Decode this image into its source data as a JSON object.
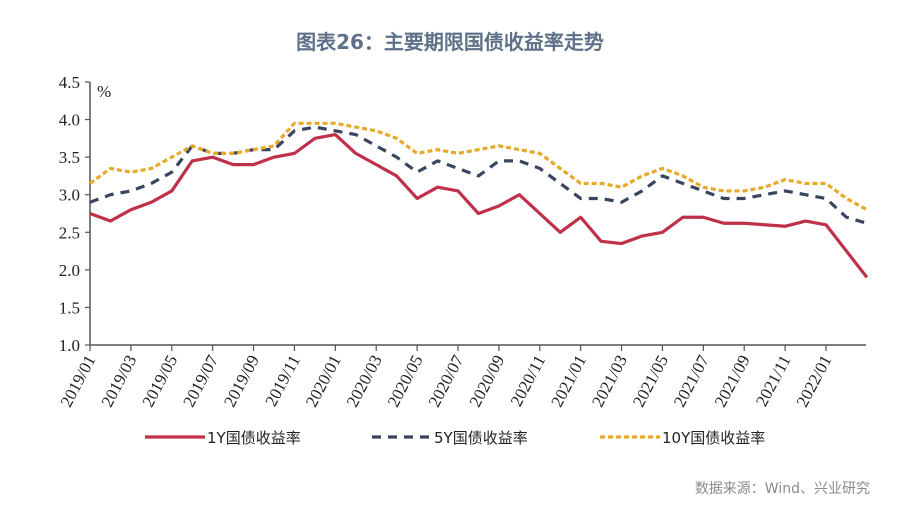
{
  "chart_data": {
    "type": "line",
    "title": "图表26：主要期限国债收益率走势",
    "ylabel": "%",
    "ylim": [
      1.0,
      4.5
    ],
    "yticks": [
      "1.0",
      "1.5",
      "2.0",
      "2.5",
      "3.0",
      "3.5",
      "4.0",
      "4.5"
    ],
    "xticks": [
      "2019/01",
      "2019/03",
      "2019/05",
      "2019/07",
      "2019/09",
      "2019/11",
      "2020/01",
      "2020/03",
      "2020/05",
      "2020/07",
      "2020/09",
      "2020/11",
      "2021/01",
      "2021/03",
      "2021/05",
      "2021/07",
      "2021/09",
      "2021/11",
      "2022/01"
    ],
    "grid": false,
    "legend_position": "bottom",
    "x": [
      "2019/01",
      "2019/02",
      "2019/03",
      "2019/04",
      "2019/05",
      "2019/06",
      "2019/07",
      "2019/08",
      "2019/09",
      "2019/10",
      "2019/11",
      "2019/12",
      "2020/01",
      "2020/02",
      "2020/03",
      "2020/04",
      "2020/05",
      "2020/06",
      "2020/07",
      "2020/08",
      "2020/09",
      "2020/10",
      "2020/11",
      "2020/12",
      "2021/01",
      "2021/02",
      "2021/03",
      "2021/04",
      "2021/05",
      "2021/06",
      "2021/07",
      "2021/08",
      "2021/09",
      "2021/10",
      "2021/11",
      "2021/12",
      "2022/01",
      "2022/02",
      "2022/03"
    ],
    "series": [
      {
        "name": "1Y国债收益率",
        "color": "#c0304a",
        "style": "solid",
        "values": [
          2.75,
          2.65,
          2.8,
          2.9,
          3.05,
          3.45,
          3.5,
          3.4,
          3.4,
          3.5,
          3.55,
          3.75,
          3.8,
          3.55,
          3.4,
          3.25,
          2.95,
          3.1,
          3.05,
          2.75,
          2.85,
          3.0,
          2.75,
          2.5,
          2.7,
          2.38,
          2.35,
          2.45,
          2.5,
          2.7,
          2.7,
          2.62,
          2.62,
          2.6,
          2.58,
          2.65,
          2.6,
          2.25,
          1.9
        ]
      },
      {
        "name": "5Y国债收益率",
        "color": "#3a4660",
        "style": "dashed",
        "values": [
          2.9,
          3.0,
          3.05,
          3.15,
          3.3,
          3.65,
          3.55,
          3.55,
          3.6,
          3.6,
          3.85,
          3.9,
          3.85,
          3.8,
          3.65,
          3.5,
          3.3,
          3.45,
          3.35,
          3.25,
          3.45,
          3.45,
          3.35,
          3.15,
          2.95,
          2.95,
          2.9,
          3.05,
          3.25,
          3.15,
          3.05,
          2.95,
          2.95,
          3.0,
          3.05,
          3.0,
          2.95,
          2.7,
          2.62
        ]
      },
      {
        "name": "10Y国债收益率",
        "color": "#e8a828",
        "style": "dotted",
        "values": [
          3.15,
          3.35,
          3.3,
          3.35,
          3.5,
          3.65,
          3.55,
          3.55,
          3.6,
          3.65,
          3.95,
          3.95,
          3.95,
          3.9,
          3.85,
          3.75,
          3.55,
          3.6,
          3.55,
          3.6,
          3.65,
          3.6,
          3.55,
          3.35,
          3.15,
          3.15,
          3.1,
          3.25,
          3.35,
          3.25,
          3.1,
          3.05,
          3.05,
          3.1,
          3.2,
          3.15,
          3.15,
          2.95,
          2.8
        ]
      }
    ]
  },
  "source": "数据来源：Wind、兴业研究"
}
